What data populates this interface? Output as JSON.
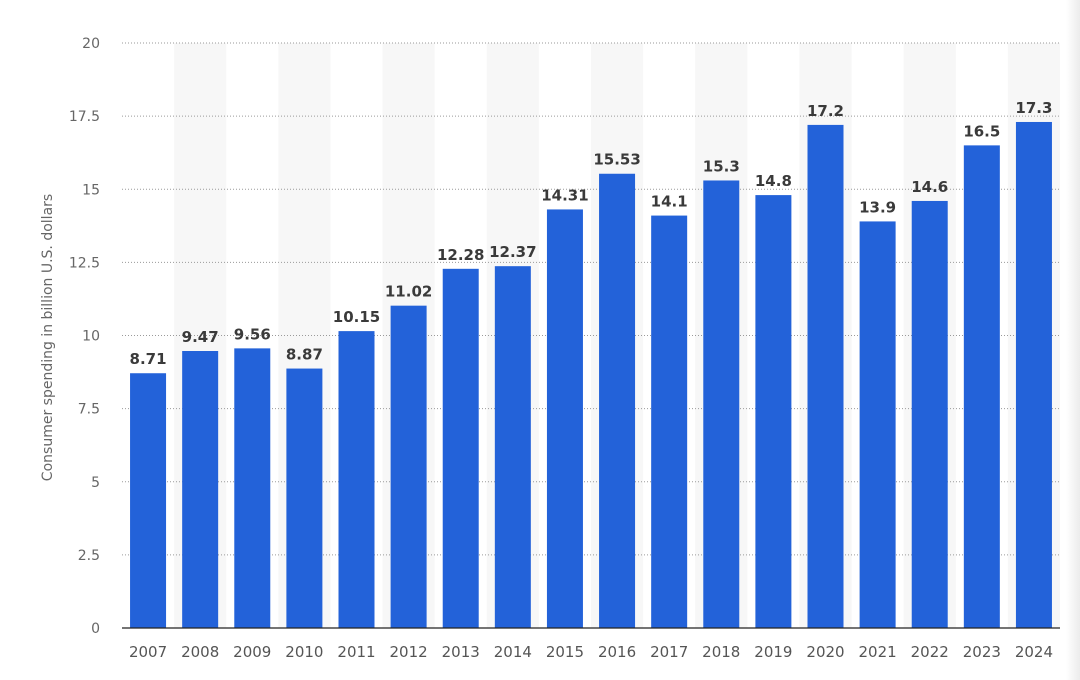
{
  "chart_data": {
    "type": "bar",
    "ylabel": "Consumer spending in billion U.S. dollars",
    "xlabel": "",
    "ylim": [
      0,
      20
    ],
    "yticks": [
      0,
      2.5,
      5,
      7.5,
      10,
      12.5,
      15,
      17.5,
      20
    ],
    "ytick_labels": [
      "0",
      "2.5",
      "5",
      "7.5",
      "10",
      "12.5",
      "15",
      "17.5",
      "20"
    ],
    "categories": [
      "2007",
      "2008",
      "2009",
      "2010",
      "2011",
      "2012",
      "2013",
      "2014",
      "2015",
      "2016",
      "2017",
      "2018",
      "2019",
      "2020",
      "2021",
      "2022",
      "2023",
      "2024"
    ],
    "values": [
      8.71,
      9.47,
      9.56,
      8.87,
      10.15,
      11.02,
      12.28,
      12.37,
      14.31,
      15.53,
      14.1,
      15.3,
      14.8,
      17.2,
      13.9,
      14.6,
      16.5,
      17.3
    ],
    "value_labels": [
      "8.71",
      "9.47",
      "9.56",
      "8.87",
      "10.15",
      "11.02",
      "12.28",
      "12.37",
      "14.31",
      "15.53",
      "14.1",
      "15.3",
      "14.8",
      "17.2",
      "13.9",
      "14.6",
      "16.5",
      "17.3"
    ],
    "grid": true,
    "legend": "none",
    "colors": {
      "bar": "#2362d9",
      "band": "#f7f7f7",
      "grid": "#9a9a9a",
      "axis_text": "#666666",
      "data_label": "#3a3a3a"
    }
  }
}
